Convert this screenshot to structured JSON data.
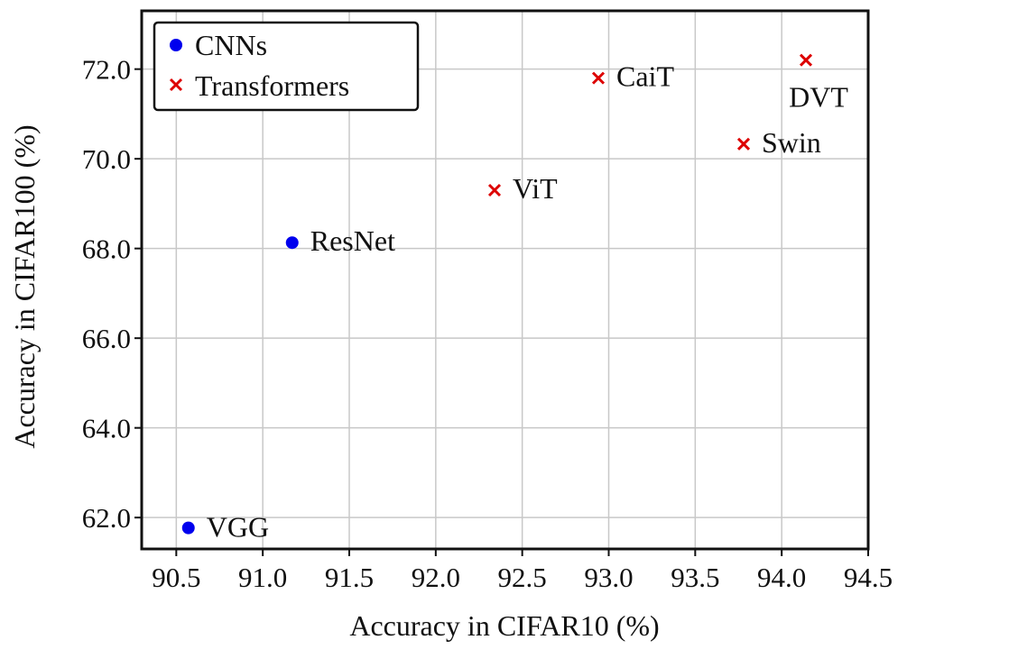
{
  "colors": {
    "cnn": "#0000ee",
    "transformer": "#dd0000",
    "grid": "#c8c8c8",
    "axis": "#111111"
  },
  "chart_data": {
    "type": "scatter",
    "xlabel": "Accuracy in CIFAR10 (%)",
    "ylabel": "Accuracy in CIFAR100 (%)",
    "xlim": [
      90.3,
      94.5
    ],
    "ylim": [
      61.3,
      73.3
    ],
    "xticks": [
      "90.5",
      "91.0",
      "91.5",
      "92.0",
      "92.5",
      "93.0",
      "93.5",
      "94.0",
      "94.5"
    ],
    "yticks": [
      "62.0",
      "64.0",
      "66.0",
      "68.0",
      "70.0",
      "72.0"
    ],
    "grid": true,
    "legend": {
      "placement": "top-left",
      "entries": [
        "CNNs",
        "Transformers"
      ]
    },
    "series": [
      {
        "name": "CNNs",
        "marker": "circle",
        "color": "#0000ee",
        "points": [
          {
            "label": "VGG",
            "x": 90.57,
            "y": 61.77
          },
          {
            "label": "ResNet",
            "x": 91.17,
            "y": 68.13
          }
        ]
      },
      {
        "name": "Transformers",
        "marker": "x",
        "color": "#dd0000",
        "points": [
          {
            "label": "ViT",
            "x": 92.34,
            "y": 69.3
          },
          {
            "label": "CaiT",
            "x": 92.94,
            "y": 71.8
          },
          {
            "label": "Swin",
            "x": 93.78,
            "y": 70.33
          },
          {
            "label": "DVT",
            "x": 94.14,
            "y": 72.2
          }
        ]
      }
    ]
  }
}
